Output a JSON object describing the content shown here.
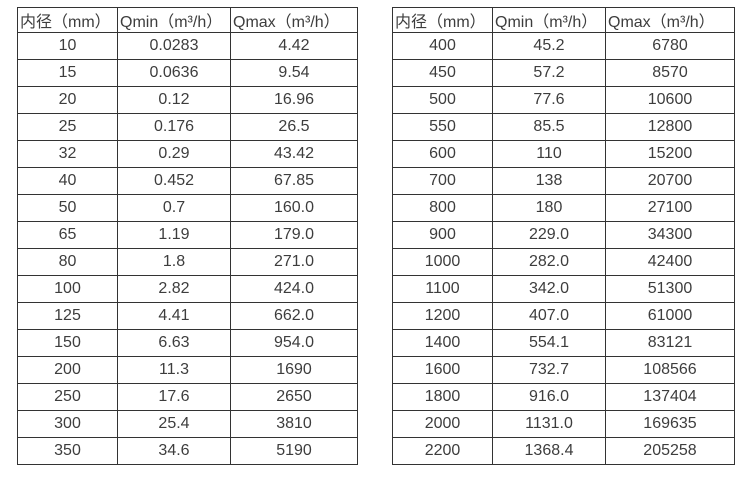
{
  "colors": {
    "border": "#333333",
    "text": "#3d3d3d",
    "background": "#ffffff"
  },
  "tables": [
    {
      "name": "flow-table-small-diameters",
      "headers": [
        "内径（mm）",
        "Qmin（m³/h）",
        "Qmax（m³/h）"
      ],
      "rows": [
        [
          "10",
          "0.0283",
          "4.42"
        ],
        [
          "15",
          "0.0636",
          "9.54"
        ],
        [
          "20",
          "0.12",
          "16.96"
        ],
        [
          "25",
          "0.176",
          "26.5"
        ],
        [
          "32",
          "0.29",
          "43.42"
        ],
        [
          "40",
          "0.452",
          "67.85"
        ],
        [
          "50",
          "0.7",
          "160.0"
        ],
        [
          "65",
          "1.19",
          "179.0"
        ],
        [
          "80",
          "1.8",
          "271.0"
        ],
        [
          "100",
          "2.82",
          "424.0"
        ],
        [
          "125",
          "4.41",
          "662.0"
        ],
        [
          "150",
          "6.63",
          "954.0"
        ],
        [
          "200",
          "11.3",
          "1690"
        ],
        [
          "250",
          "17.6",
          "2650"
        ],
        [
          "300",
          "25.4",
          "3810"
        ],
        [
          "350",
          "34.6",
          "5190"
        ]
      ]
    },
    {
      "name": "flow-table-large-diameters",
      "headers": [
        "内径（mm）",
        "Qmin（m³/h）",
        "Qmax（m³/h）"
      ],
      "rows": [
        [
          "400",
          "45.2",
          "6780"
        ],
        [
          "450",
          "57.2",
          "8570"
        ],
        [
          "500",
          "77.6",
          "10600"
        ],
        [
          "550",
          "85.5",
          "12800"
        ],
        [
          "600",
          "110",
          "15200"
        ],
        [
          "700",
          "138",
          "20700"
        ],
        [
          "800",
          "180",
          "27100"
        ],
        [
          "900",
          "229.0",
          "34300"
        ],
        [
          "1000",
          "282.0",
          "42400"
        ],
        [
          "1100",
          "342.0",
          "51300"
        ],
        [
          "1200",
          "407.0",
          "61000"
        ],
        [
          "1400",
          "554.1",
          "83121"
        ],
        [
          "1600",
          "732.7",
          "108566"
        ],
        [
          "1800",
          "916.0",
          "137404"
        ],
        [
          "2000",
          "1131.0",
          "169635"
        ],
        [
          "2200",
          "1368.4",
          "205258"
        ]
      ]
    }
  ]
}
